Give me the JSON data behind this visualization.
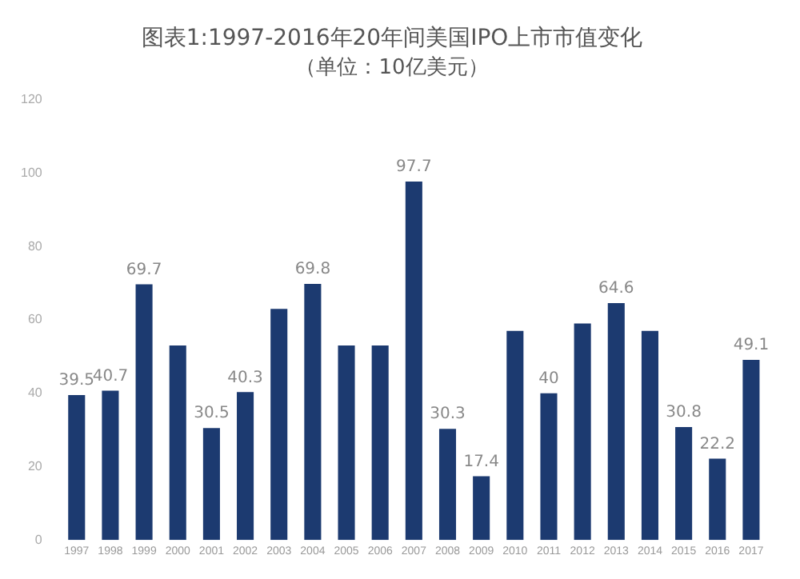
{
  "chart_data": {
    "type": "bar",
    "title": "图表1:1997-2016年20年间美国IPO上市市值变化",
    "subtitle": "（单位：10亿美元）",
    "categories": [
      "1997",
      "1998",
      "1999",
      "2000",
      "2001",
      "2002",
      "2003",
      "2004",
      "2005",
      "2006",
      "2007",
      "2008",
      "2009",
      "2010",
      "2011",
      "2012",
      "2013",
      "2014",
      "2015",
      "2016",
      "2017"
    ],
    "values": [
      39.5,
      40.7,
      69.7,
      53,
      30.5,
      40.3,
      63,
      69.8,
      53,
      53,
      97.7,
      30.3,
      17.4,
      57,
      40,
      59,
      64.6,
      57,
      30.8,
      22.2,
      49.1
    ],
    "value_labels": [
      "39.5",
      "40.7",
      "69.7",
      null,
      "30.5",
      "40.3",
      null,
      "69.8",
      null,
      null,
      "97.7",
      "30.3",
      "17.4",
      null,
      "40",
      null,
      "64.6",
      null,
      "30.8",
      "22.2",
      "49.1"
    ],
    "color": "#1c3a70",
    "ylim": [
      0,
      120
    ],
    "yticks": [
      0,
      20,
      40,
      60,
      80,
      100,
      120
    ],
    "grid": false,
    "legend": false
  }
}
